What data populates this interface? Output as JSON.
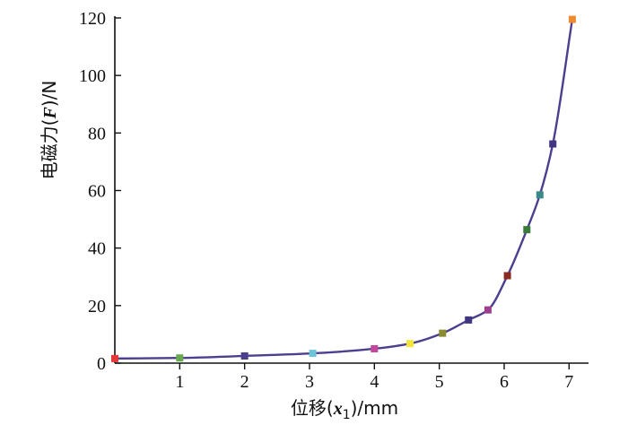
{
  "chart_data": {
    "type": "line",
    "xlabel": "位移(x1)/mm",
    "ylabel": "电磁力(F)/N",
    "xlim": [
      0,
      7.3
    ],
    "ylim": [
      0,
      120
    ],
    "xticks": [
      1,
      2,
      3,
      4,
      5,
      6,
      7
    ],
    "yticks": [
      0,
      20,
      40,
      60,
      80,
      100,
      120
    ],
    "grid": false,
    "series": [
      {
        "points": [
          {
            "x": 0.0,
            "y": 1.6,
            "color": "#e53935"
          },
          {
            "x": 1.0,
            "y": 1.8,
            "color": "#6aa84f"
          },
          {
            "x": 2.0,
            "y": 2.5,
            "color": "#4b3f8f"
          },
          {
            "x": 3.05,
            "y": 3.4,
            "color": "#6fc3d6"
          },
          {
            "x": 4.0,
            "y": 5.0,
            "color": "#c2479a"
          },
          {
            "x": 4.55,
            "y": 6.8,
            "color": "#f2e63a"
          },
          {
            "x": 5.05,
            "y": 10.4,
            "color": "#8a8a2e"
          },
          {
            "x": 5.45,
            "y": 15.0,
            "color": "#3f3580"
          },
          {
            "x": 5.75,
            "y": 18.5,
            "color": "#9c3f8f"
          },
          {
            "x": 6.05,
            "y": 30.4,
            "color": "#8b2b22"
          },
          {
            "x": 6.35,
            "y": 46.4,
            "color": "#3a7a3a"
          },
          {
            "x": 6.55,
            "y": 58.5,
            "color": "#3b8a8a"
          },
          {
            "x": 6.75,
            "y": 76.2,
            "color": "#3f3580"
          },
          {
            "x": 7.05,
            "y": 119.5,
            "color": "#f08a30"
          }
        ]
      }
    ]
  }
}
